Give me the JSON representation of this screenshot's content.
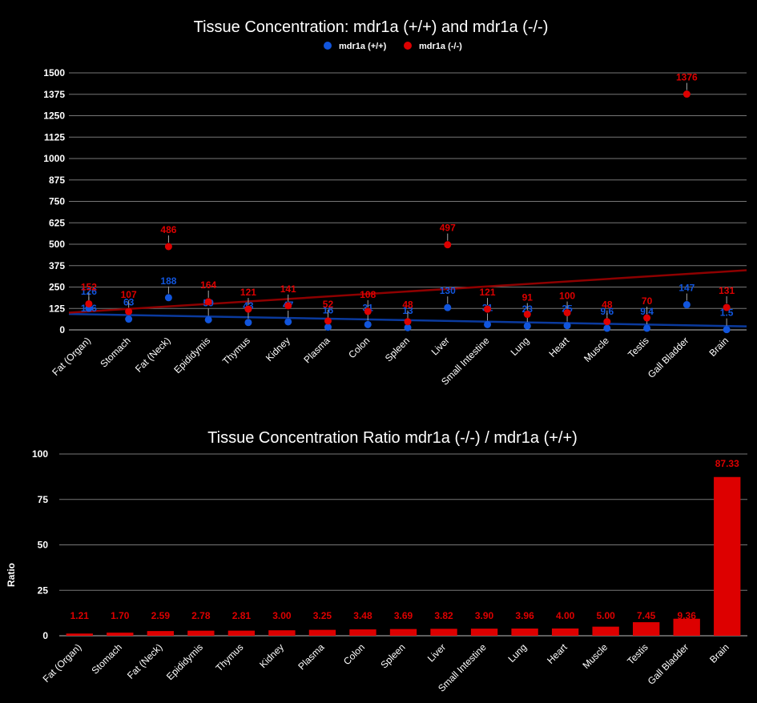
{
  "colors": {
    "wt": "#1155dd",
    "ko": "#dd0000",
    "wt_trend": "#0a3a9e",
    "ko_trend": "#8e0000",
    "bar": "#dd0000"
  },
  "chart_data": [
    {
      "type": "scatter",
      "title": "Tissue Concentration: mdr1a (+/+) and mdr1a (-/-)",
      "legend_position": "top",
      "categories": [
        "Fat (Organ)",
        "Stomach",
        "Fat (Neck)",
        "Epididymis",
        "Thymus",
        "Kidney",
        "Plasma",
        "Colon",
        "Spleen",
        "Liver",
        "Small Intestine",
        "Lung",
        "Heart",
        "Muscle",
        "Testis",
        "Gall Bladder",
        "Brain"
      ],
      "yticks": [
        "0",
        "125",
        "250",
        "375",
        "500",
        "625",
        "750",
        "875",
        "1000",
        "1125",
        "1250",
        "1375",
        "1500"
      ],
      "ylim": [
        0,
        1500
      ],
      "grid": true,
      "trendlines": true,
      "series": [
        {
          "name": "mdr1a (+/+)",
          "values": [
            126,
            63,
            188,
            59,
            43,
            47,
            16,
            31,
            13,
            130,
            31,
            23,
            25,
            9.6,
            9.4,
            147,
            1.5
          ],
          "labels": [
            "126",
            "63",
            "188",
            "59",
            "43",
            "47",
            "16",
            "31",
            "13",
            "130",
            "31",
            "23",
            "25",
            "9.6",
            "9.4",
            "147",
            "1.5"
          ],
          "extra_labels": [
            "126",
            "",
            "",
            "",
            "",
            "",
            "",
            "",
            "",
            "",
            "",
            "",
            "",
            "",
            "",
            "",
            ""
          ]
        },
        {
          "name": "mdr1a (-/-)",
          "values": [
            152,
            107,
            486,
            164,
            121,
            141,
            52,
            108,
            48,
            497,
            121,
            91,
            100,
            48,
            70,
            1376,
            131
          ],
          "labels": [
            "152",
            "107",
            "486",
            "164",
            "121",
            "141",
            "52",
            "108",
            "48",
            "497",
            "121",
            "91",
            "100",
            "48",
            "70",
            "1376",
            "131"
          ]
        }
      ]
    },
    {
      "type": "bar",
      "title": "Tissue Concentration Ratio mdr1a (-/-) / mdr1a (+/+)",
      "ylabel": "Ratio",
      "categories": [
        "Fat (Organ)",
        "Stomach",
        "Fat (Neck)",
        "Epididymis",
        "Thymus",
        "Kidney",
        "Plasma",
        "Colon",
        "Spleen",
        "Liver",
        "Small Intestine",
        "Lung",
        "Heart",
        "Muscle",
        "Testis",
        "Gall Bladder",
        "Brain"
      ],
      "values": [
        1.21,
        1.7,
        2.59,
        2.78,
        2.81,
        3.0,
        3.25,
        3.48,
        3.69,
        3.82,
        3.9,
        3.96,
        4.0,
        5.0,
        7.45,
        9.36,
        87.33
      ],
      "labels": [
        "1.21",
        "1.70",
        "2.59",
        "2.78",
        "2.81",
        "3.00",
        "3.25",
        "3.48",
        "3.69",
        "3.82",
        "3.90",
        "3.96",
        "4.00",
        "5.00",
        "7.45",
        "9.36",
        "87.33"
      ],
      "yticks": [
        "0",
        "25",
        "50",
        "75",
        "100"
      ],
      "ylim": [
        0,
        100
      ],
      "grid": true
    }
  ]
}
